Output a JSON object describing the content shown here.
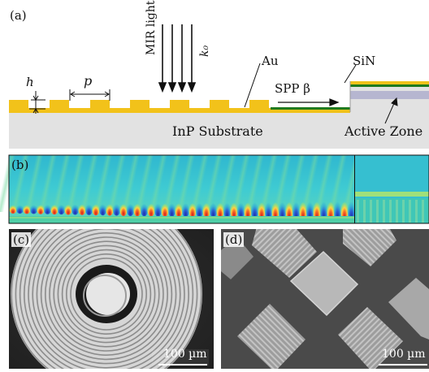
{
  "panel_a": {
    "label": "(a)",
    "h_label": "h",
    "p_label": "p",
    "light_label": "MIR light",
    "k_label": "k₀",
    "au_label": "Au",
    "sin_label": "SiN",
    "spp_label": "SPP β",
    "substrate_label": "InP Substrate",
    "active_label": "Active Zone"
  },
  "panel_b": {
    "label": "(b)"
  },
  "panel_c": {
    "label": "(c)",
    "scale_text": "100 µm"
  },
  "panel_d": {
    "label": "(d)",
    "scale_text": "100 µm"
  },
  "colors": {
    "gold": "#f2c21a",
    "substrate": "#e1e1e1",
    "waveguide_green": "#1f7a1f",
    "field_background": "#3cc8d0"
  }
}
